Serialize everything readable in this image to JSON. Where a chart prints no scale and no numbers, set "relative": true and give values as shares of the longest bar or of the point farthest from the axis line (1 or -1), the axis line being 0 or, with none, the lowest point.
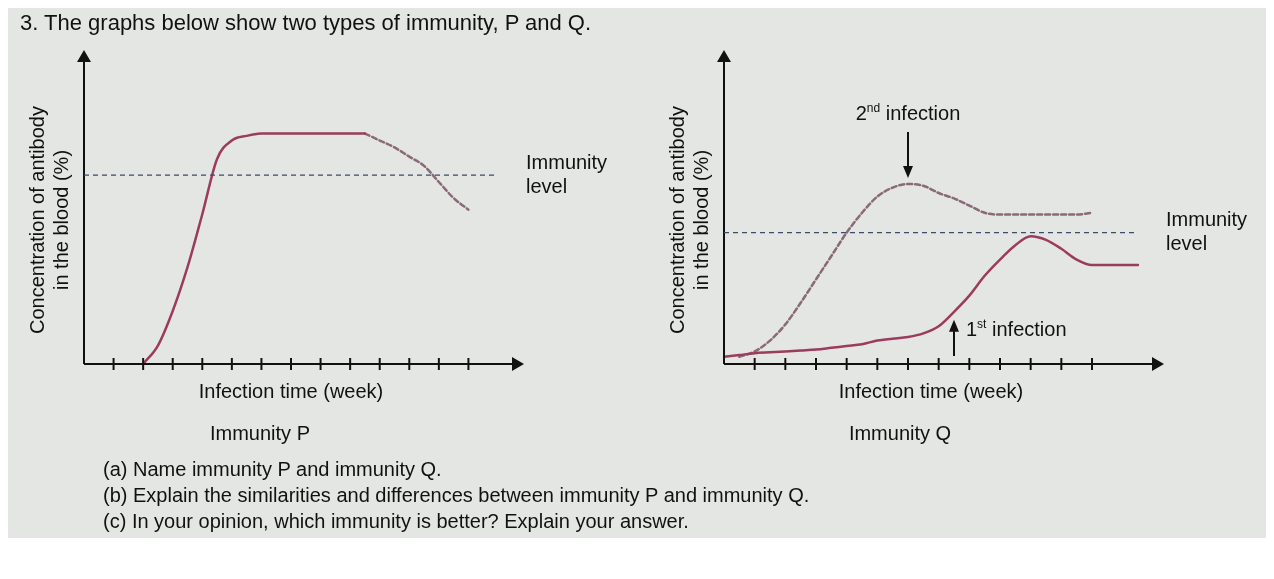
{
  "chart_data": [
    {
      "type": "line",
      "title": "Immunity P",
      "xlabel": "Infection time (week)",
      "ylabel": "Concentration of antibody\nin the blood (%)",
      "relative": true,
      "grid": false,
      "legend": false,
      "tick_labels": false,
      "marker": "none",
      "categories": [
        null,
        null,
        null,
        null,
        null,
        null,
        null,
        null,
        null,
        null,
        null,
        null,
        null,
        null,
        null,
        null,
        null,
        null,
        null,
        null,
        null,
        null,
        null,
        null,
        null,
        null,
        null,
        null,
        null
      ],
      "series": [
        {
          "color": "#9b3b5e",
          "line_style": "solid",
          "values": [
            null,
            null,
            null,
            null,
            0,
            0.08,
            0.23,
            0.42,
            0.65,
            0.89,
            0.97,
            0.99,
            1,
            1,
            1,
            1,
            1,
            1,
            1,
            1,
            null,
            null,
            null,
            null,
            null,
            null,
            null,
            null,
            null
          ]
        },
        {
          "color": "#8a6a78",
          "line_style": "dashed",
          "values": [
            null,
            null,
            null,
            null,
            null,
            null,
            null,
            null,
            null,
            null,
            null,
            null,
            null,
            null,
            null,
            null,
            null,
            null,
            null,
            1,
            0.97,
            0.94,
            0.9,
            0.86,
            0.79,
            0.72,
            0.67,
            null,
            null
          ]
        }
      ],
      "ref_lines": [
        {
          "axis": "y",
          "value": 0.82,
          "label": "Immunity level",
          "color": "#3d4a6b",
          "line_style": "dashed"
        }
      ],
      "annotations": [
        "3. The graphs below show two types of immunity, P and Q.",
        "(a) Name immunity P and immunity Q.",
        "(b) Explain the similarities and differences between immunity P and immunity Q.",
        "(c) In your opinion, which immunity is better? Explain your answer."
      ]
    },
    {
      "type": "line",
      "title": "Immunity Q",
      "xlabel": "Infection time (week)",
      "ylabel": "Concentration of antibody\nin the blood (%)",
      "relative": true,
      "grid": false,
      "legend": false,
      "tick_labels": false,
      "marker": "none",
      "categories": [
        null,
        null,
        null,
        null,
        null,
        null,
        null,
        null,
        null,
        null,
        null,
        null,
        null,
        null,
        null,
        null,
        null,
        null,
        null,
        null,
        null,
        null,
        null,
        null,
        null,
        null,
        null,
        null
      ],
      "series": [
        {
          "color": "#9b3b5e",
          "line_style": "solid",
          "values": [
            0.04,
            0.05,
            0.06,
            0.065,
            0.07,
            0.075,
            0.08,
            0.09,
            0.1,
            0.11,
            0.13,
            0.14,
            0.15,
            0.17,
            0.21,
            0.29,
            0.38,
            0.49,
            0.58,
            0.66,
            0.71,
            0.69,
            0.64,
            0.58,
            0.55,
            0.55,
            0.55,
            0.55
          ]
        },
        {
          "color": "#8a6a78",
          "line_style": "dashed",
          "values": [
            null,
            0.04,
            0.07,
            0.13,
            0.22,
            0.34,
            0.47,
            0.6,
            0.73,
            0.84,
            0.93,
            0.98,
            1,
            0.99,
            0.95,
            0.92,
            0.88,
            0.84,
            0.83,
            0.83,
            0.83,
            0.83,
            0.83,
            0.83,
            0.84,
            null,
            null,
            null
          ]
        }
      ],
      "ref_lines": [
        {
          "axis": "y",
          "value": 0.73,
          "label": "Immunity level",
          "color": "#3d4a6b",
          "line_style": "dashed"
        }
      ],
      "annotations": [
        "2$^{nd}$ infection",
        "1$^{st}$ infection"
      ]
    }
  ]
}
